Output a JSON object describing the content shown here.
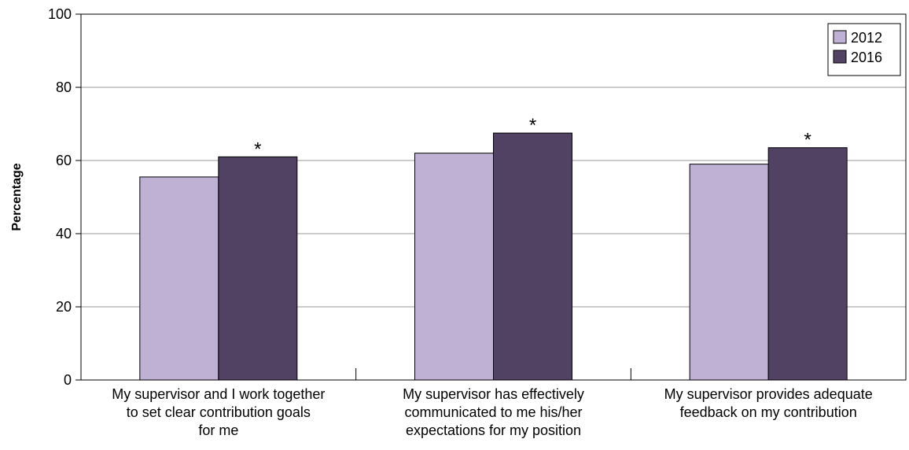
{
  "chart_data": {
    "type": "bar",
    "ylabel": "Percentage",
    "xlabel": "",
    "ylim": [
      0,
      100
    ],
    "yticks": [
      0,
      20,
      40,
      60,
      80,
      100
    ],
    "grid": true,
    "legend_position": "top-right",
    "categories": [
      [
        "My supervisor and I work together",
        "to set clear contribution goals",
        "for me"
      ],
      [
        "My supervisor has effectively",
        "communicated to me his/her",
        "expectations for my position"
      ],
      [
        "My supervisor provides adequate",
        "feedback on my contribution"
      ]
    ],
    "series": [
      {
        "name": "2012",
        "values": [
          55.5,
          62,
          59
        ],
        "color": "#bfb1d3"
      },
      {
        "name": "2016",
        "values": [
          61,
          67.5,
          63.5
        ],
        "color": "#514264"
      }
    ],
    "annotations": [
      {
        "series": "2016",
        "category_index": 0,
        "text": "*"
      },
      {
        "series": "2016",
        "category_index": 1,
        "text": "*"
      },
      {
        "series": "2016",
        "category_index": 2,
        "text": "*"
      }
    ]
  }
}
